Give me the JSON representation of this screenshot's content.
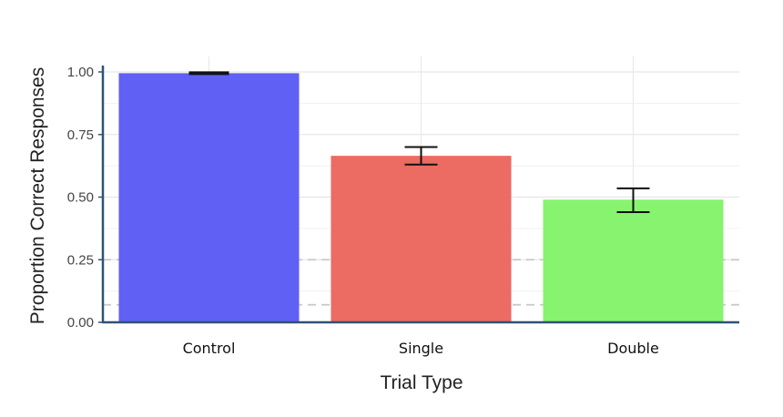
{
  "chart_data": {
    "type": "bar",
    "categories": [
      "Control",
      "Single",
      "Double"
    ],
    "values": [
      0.995,
      0.665,
      0.49
    ],
    "error_low": [
      0.99,
      0.63,
      0.44
    ],
    "error_high": [
      1.0,
      0.7,
      0.535
    ],
    "bar_colors": [
      "#6060f5",
      "#ec6b63",
      "#88f36f"
    ],
    "reference_lines": [
      0.25,
      0.07
    ],
    "ylim": [
      0,
      1.0
    ],
    "yticks": [
      "0.00",
      "0.25",
      "0.50",
      "0.75",
      "1.00"
    ],
    "ytick_values": [
      0,
      0.25,
      0.5,
      0.75,
      1.0
    ],
    "xlabel": "Trial Type",
    "ylabel": "Proportion Correct Responses",
    "grid": true,
    "legend": "none",
    "axis_color": "#2f5275"
  }
}
